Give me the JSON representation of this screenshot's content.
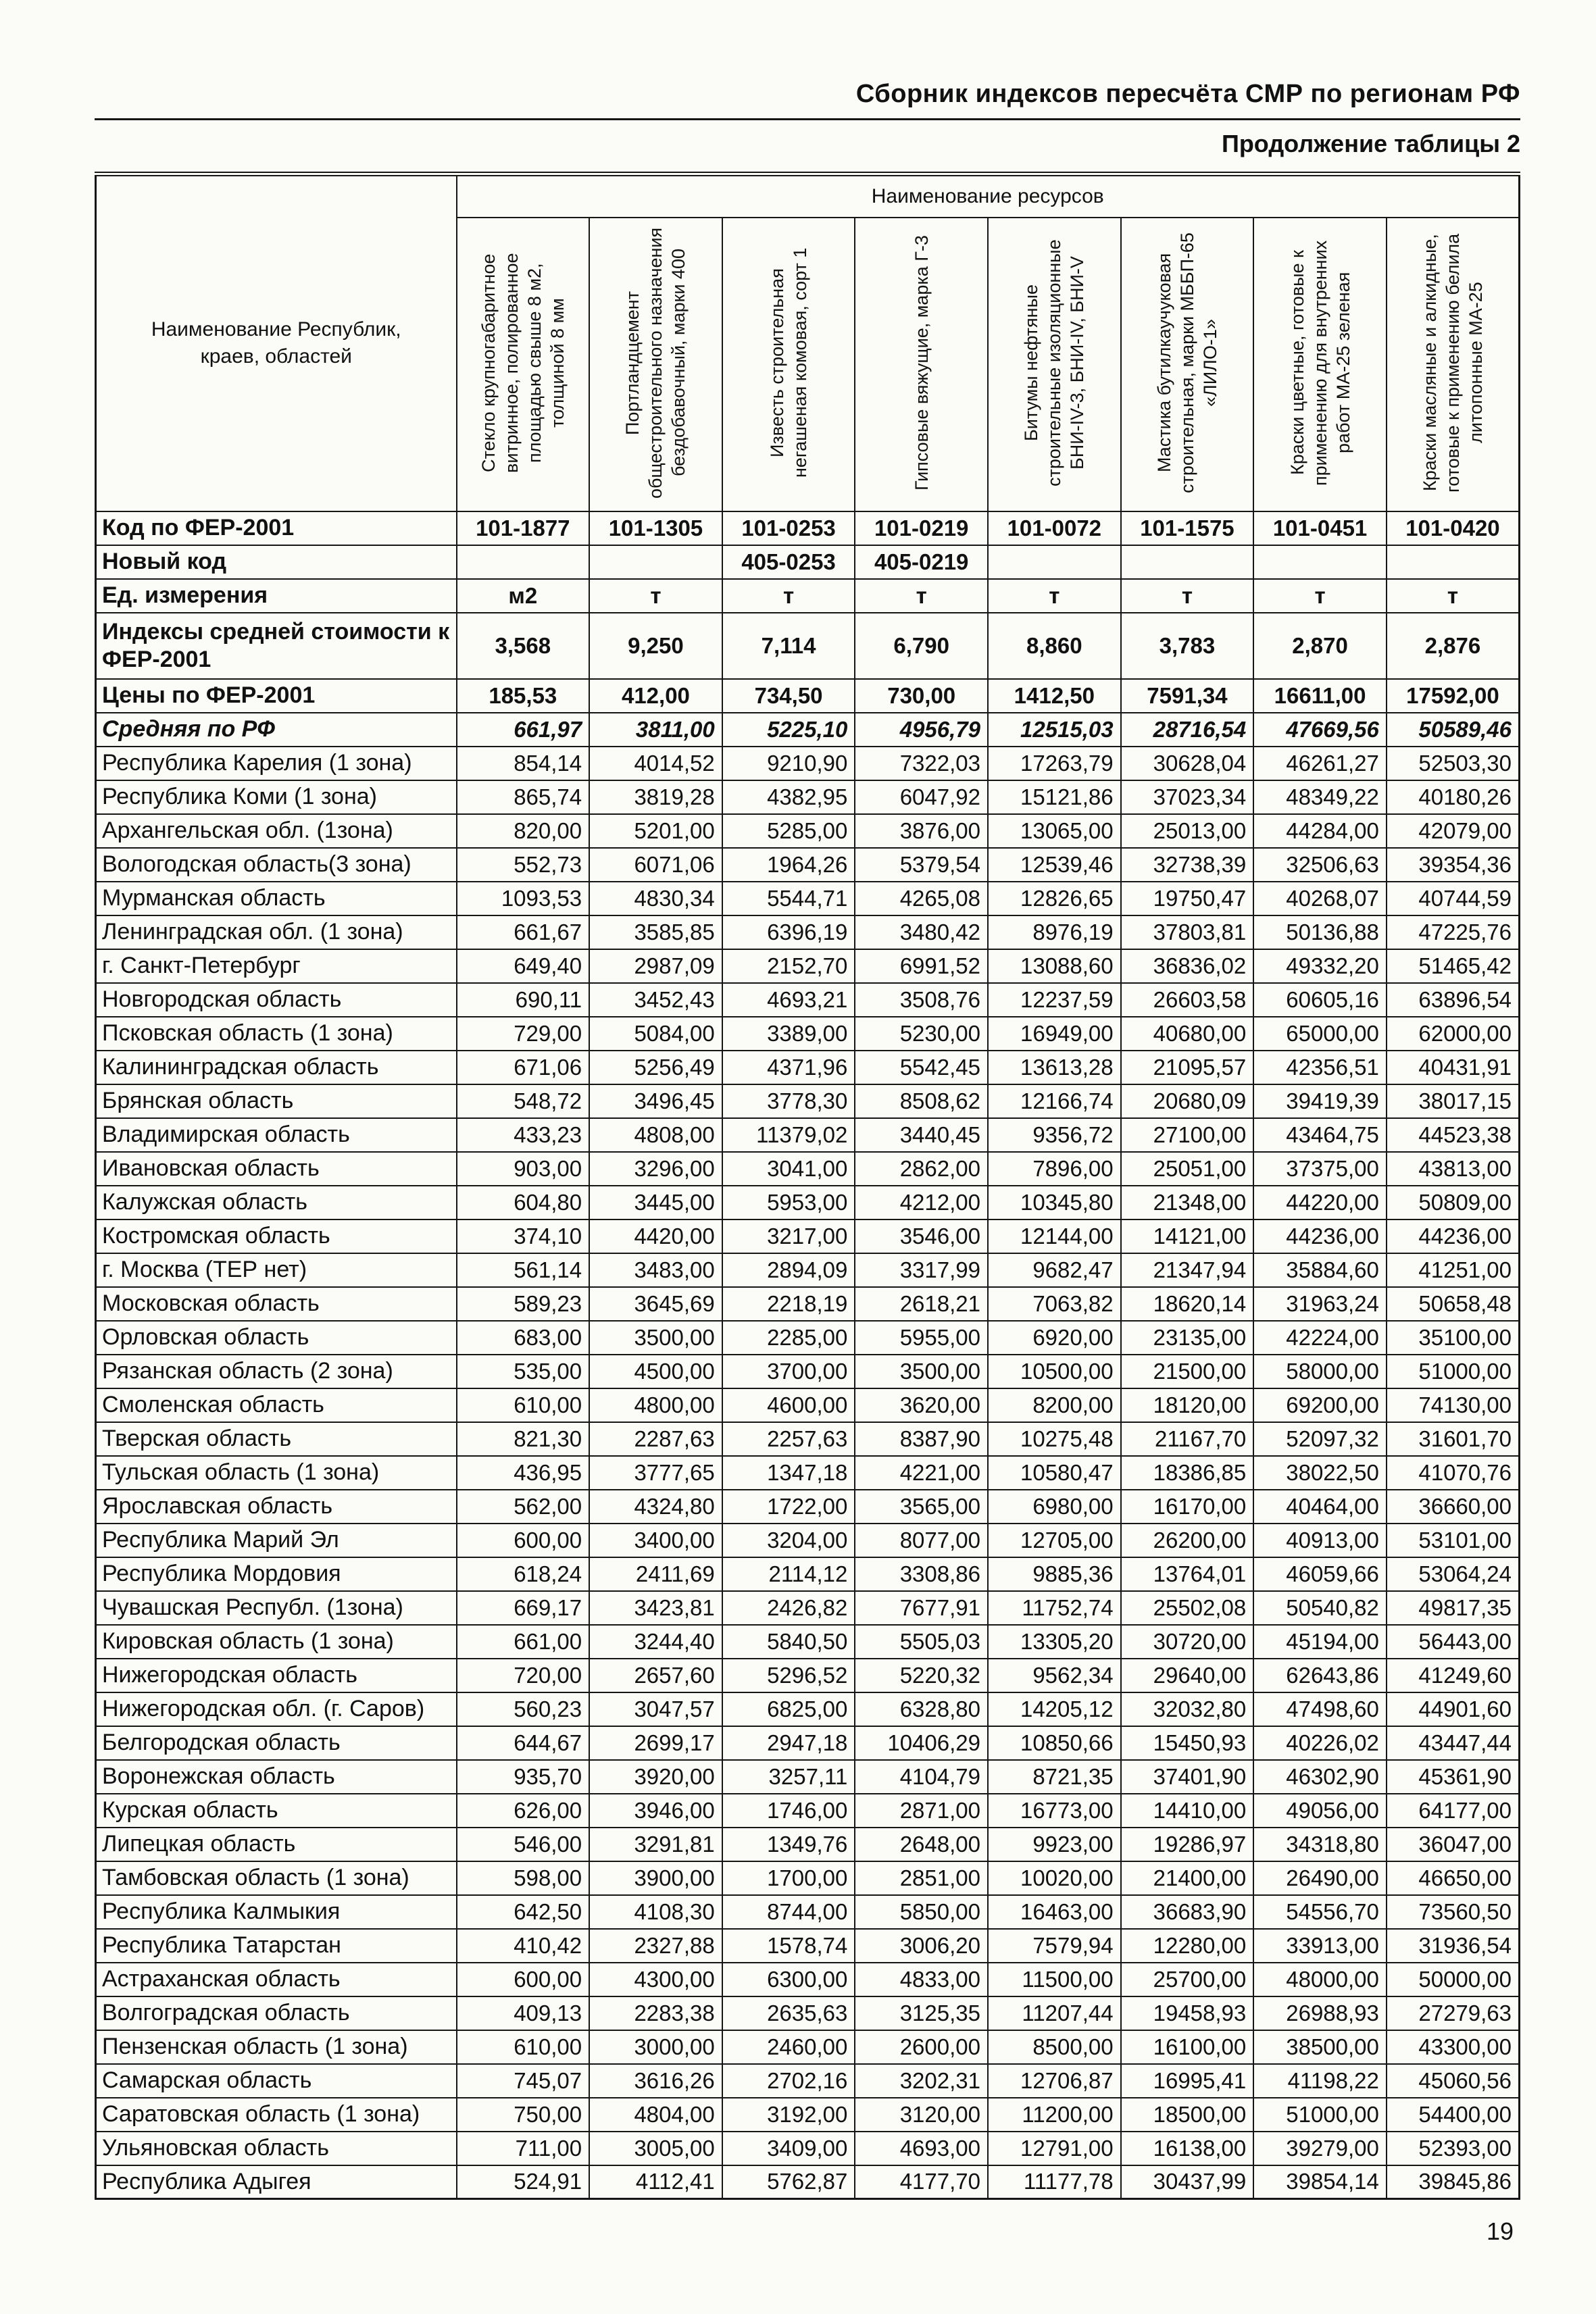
{
  "page": {
    "header_right": "Сборник индексов пересчёта СМР  по регионам РФ",
    "table_continuation": "Продолжение таблицы 2",
    "page_number": "19"
  },
  "table": {
    "first_col_header": "Наименование Республик, краев, областей",
    "resources_header": "Наименование ресурсов",
    "columns": [
      "Стекло крупногабаритное витринное, полированное площадью свыше 8 м2, толщиной 8 мм",
      "Портландцемент общестроительного назначения бездобавочный, марки 400",
      "Известь строительная негашеная комовая, сорт 1",
      "Гипсовые вяжущие, марка Г-3",
      "Битумы нефтяные строительные изоляционные БНИ-IV-3, БНИ-IV, БНИ-V",
      "Мастика бутилкаучуковая строительная, марки МББП-65 «ЛИЛО-1»",
      "Краски цветные, готовые к применению для внутренних работ МА-25 зеленая",
      "Краски масляные и алкидные, готовые к применению белила литопонные МА-25"
    ],
    "meta_rows": [
      {
        "key": "fer-code",
        "label": "Код по ФЕР-2001",
        "values": [
          "101-1877",
          "101-1305",
          "101-0253",
          "101-0219",
          "101-0072",
          "101-1575",
          "101-0451",
          "101-0420"
        ]
      },
      {
        "key": "new-code",
        "label": "Новый код",
        "values": [
          "",
          "",
          "405-0253",
          "405-0219",
          "",
          "",
          "",
          ""
        ]
      },
      {
        "key": "unit",
        "label": "Ед. измерения",
        "values": [
          "м2",
          "т",
          "т",
          "т",
          "т",
          "т",
          "т",
          "т"
        ]
      },
      {
        "key": "avg-cost-index",
        "label": "Индексы средней стоимости к ФЕР-2001",
        "values": [
          "3,568",
          "9,250",
          "7,114",
          "6,790",
          "8,860",
          "3,783",
          "2,870",
          "2,876"
        ]
      },
      {
        "key": "fer-prices",
        "label": "Цены по ФЕР-2001",
        "values": [
          "185,53",
          "412,00",
          "734,50",
          "730,00",
          "1412,50",
          "7591,34",
          "16611,00",
          "17592,00"
        ]
      },
      {
        "key": "rf-average",
        "label": "Средняя по РФ",
        "values": [
          "661,97",
          "3811,00",
          "5225,10",
          "4956,79",
          "12515,03",
          "28716,54",
          "47669,56",
          "50589,46"
        ]
      }
    ],
    "regions": [
      {
        "name": "Республика Карелия (1 зона)",
        "values": [
          "854,14",
          "4014,52",
          "9210,90",
          "7322,03",
          "17263,79",
          "30628,04",
          "46261,27",
          "52503,30"
        ]
      },
      {
        "name": "Республика Коми (1 зона)",
        "values": [
          "865,74",
          "3819,28",
          "4382,95",
          "6047,92",
          "15121,86",
          "37023,34",
          "48349,22",
          "40180,26"
        ]
      },
      {
        "name": "Архангельская обл. (1зона)",
        "values": [
          "820,00",
          "5201,00",
          "5285,00",
          "3876,00",
          "13065,00",
          "25013,00",
          "44284,00",
          "42079,00"
        ]
      },
      {
        "name": "Вологодская область(3 зона)",
        "values": [
          "552,73",
          "6071,06",
          "1964,26",
          "5379,54",
          "12539,46",
          "32738,39",
          "32506,63",
          "39354,36"
        ]
      },
      {
        "name": "Мурманская область",
        "values": [
          "1093,53",
          "4830,34",
          "5544,71",
          "4265,08",
          "12826,65",
          "19750,47",
          "40268,07",
          "40744,59"
        ]
      },
      {
        "name": "Ленинградская обл. (1 зона)",
        "values": [
          "661,67",
          "3585,85",
          "6396,19",
          "3480,42",
          "8976,19",
          "37803,81",
          "50136,88",
          "47225,76"
        ]
      },
      {
        "name": "г. Санкт-Петербург",
        "values": [
          "649,40",
          "2987,09",
          "2152,70",
          "6991,52",
          "13088,60",
          "36836,02",
          "49332,20",
          "51465,42"
        ]
      },
      {
        "name": "Новгородская область",
        "values": [
          "690,11",
          "3452,43",
          "4693,21",
          "3508,76",
          "12237,59",
          "26603,58",
          "60605,16",
          "63896,54"
        ]
      },
      {
        "name": "Псковская область (1 зона)",
        "values": [
          "729,00",
          "5084,00",
          "3389,00",
          "5230,00",
          "16949,00",
          "40680,00",
          "65000,00",
          "62000,00"
        ]
      },
      {
        "name": "Калининградская область",
        "values": [
          "671,06",
          "5256,49",
          "4371,96",
          "5542,45",
          "13613,28",
          "21095,57",
          "42356,51",
          "40431,91"
        ]
      },
      {
        "name": "Брянская область",
        "values": [
          "548,72",
          "3496,45",
          "3778,30",
          "8508,62",
          "12166,74",
          "20680,09",
          "39419,39",
          "38017,15"
        ]
      },
      {
        "name": "Владимирская область",
        "values": [
          "433,23",
          "4808,00",
          "11379,02",
          "3440,45",
          "9356,72",
          "27100,00",
          "43464,75",
          "44523,38"
        ]
      },
      {
        "name": "Ивановская область",
        "values": [
          "903,00",
          "3296,00",
          "3041,00",
          "2862,00",
          "7896,00",
          "25051,00",
          "37375,00",
          "43813,00"
        ]
      },
      {
        "name": "Калужская область",
        "values": [
          "604,80",
          "3445,00",
          "5953,00",
          "4212,00",
          "10345,80",
          "21348,00",
          "44220,00",
          "50809,00"
        ]
      },
      {
        "name": "Костромская область",
        "values": [
          "374,10",
          "4420,00",
          "3217,00",
          "3546,00",
          "12144,00",
          "14121,00",
          "44236,00",
          "44236,00"
        ]
      },
      {
        "name": "г. Москва (ТЕР нет)",
        "values": [
          "561,14",
          "3483,00",
          "2894,09",
          "3317,99",
          "9682,47",
          "21347,94",
          "35884,60",
          "41251,00"
        ]
      },
      {
        "name": "Московская  область",
        "values": [
          "589,23",
          "3645,69",
          "2218,19",
          "2618,21",
          "7063,82",
          "18620,14",
          "31963,24",
          "50658,48"
        ]
      },
      {
        "name": "Орловская область",
        "values": [
          "683,00",
          "3500,00",
          "2285,00",
          "5955,00",
          "6920,00",
          "23135,00",
          "42224,00",
          "35100,00"
        ]
      },
      {
        "name": "Рязанская область (2 зона)",
        "values": [
          "535,00",
          "4500,00",
          "3700,00",
          "3500,00",
          "10500,00",
          "21500,00",
          "58000,00",
          "51000,00"
        ]
      },
      {
        "name": "Смоленская область",
        "values": [
          "610,00",
          "4800,00",
          "4600,00",
          "3620,00",
          "8200,00",
          "18120,00",
          "69200,00",
          "74130,00"
        ]
      },
      {
        "name": "Тверская область",
        "values": [
          "821,30",
          "2287,63",
          "2257,63",
          "8387,90",
          "10275,48",
          "21167,70",
          "52097,32",
          "31601,70"
        ]
      },
      {
        "name": "Тульская область (1 зона)",
        "values": [
          "436,95",
          "3777,65",
          "1347,18",
          "4221,00",
          "10580,47",
          "18386,85",
          "38022,50",
          "41070,76"
        ]
      },
      {
        "name": "Ярославская область",
        "values": [
          "562,00",
          "4324,80",
          "1722,00",
          "3565,00",
          "6980,00",
          "16170,00",
          "40464,00",
          "36660,00"
        ]
      },
      {
        "name": "Республика Марий Эл",
        "values": [
          "600,00",
          "3400,00",
          "3204,00",
          "8077,00",
          "12705,00",
          "26200,00",
          "40913,00",
          "53101,00"
        ]
      },
      {
        "name": "Республика Мордовия",
        "values": [
          "618,24",
          "2411,69",
          "2114,12",
          "3308,86",
          "9885,36",
          "13764,01",
          "46059,66",
          "53064,24"
        ]
      },
      {
        "name": "Чувашская Республ. (1зона)",
        "values": [
          "669,17",
          "3423,81",
          "2426,82",
          "7677,91",
          "11752,74",
          "25502,08",
          "50540,82",
          "49817,35"
        ]
      },
      {
        "name": "Кировская область (1 зона)",
        "values": [
          "661,00",
          "3244,40",
          "5840,50",
          "5505,03",
          "13305,20",
          "30720,00",
          "45194,00",
          "56443,00"
        ]
      },
      {
        "name": "Нижегородская область",
        "values": [
          "720,00",
          "2657,60",
          "5296,52",
          "5220,32",
          "9562,34",
          "29640,00",
          "62643,86",
          "41249,60"
        ]
      },
      {
        "name": "Нижегородская обл. (г. Саров)",
        "values": [
          "560,23",
          "3047,57",
          "6825,00",
          "6328,80",
          "14205,12",
          "32032,80",
          "47498,60",
          "44901,60"
        ]
      },
      {
        "name": "Белгородская область",
        "values": [
          "644,67",
          "2699,17",
          "2947,18",
          "10406,29",
          "10850,66",
          "15450,93",
          "40226,02",
          "43447,44"
        ]
      },
      {
        "name": "Воронежская область",
        "values": [
          "935,70",
          "3920,00",
          "3257,11",
          "4104,79",
          "8721,35",
          "37401,90",
          "46302,90",
          "45361,90"
        ]
      },
      {
        "name": "Курская область",
        "values": [
          "626,00",
          "3946,00",
          "1746,00",
          "2871,00",
          "16773,00",
          "14410,00",
          "49056,00",
          "64177,00"
        ]
      },
      {
        "name": "Липецкая область",
        "values": [
          "546,00",
          "3291,81",
          "1349,76",
          "2648,00",
          "9923,00",
          "19286,97",
          "34318,80",
          "36047,00"
        ]
      },
      {
        "name": "Тамбовская область (1 зона)",
        "values": [
          "598,00",
          "3900,00",
          "1700,00",
          "2851,00",
          "10020,00",
          "21400,00",
          "26490,00",
          "46650,00"
        ]
      },
      {
        "name": "Республика Калмыкия",
        "values": [
          "642,50",
          "4108,30",
          "8744,00",
          "5850,00",
          "16463,00",
          "36683,90",
          "54556,70",
          "73560,50"
        ]
      },
      {
        "name": "Республика Татарстан",
        "values": [
          "410,42",
          "2327,88",
          "1578,74",
          "3006,20",
          "7579,94",
          "12280,00",
          "33913,00",
          "31936,54"
        ]
      },
      {
        "name": "Астраханская область",
        "values": [
          "600,00",
          "4300,00",
          "6300,00",
          "4833,00",
          "11500,00",
          "25700,00",
          "48000,00",
          "50000,00"
        ]
      },
      {
        "name": "Волгоградская область",
        "values": [
          "409,13",
          "2283,38",
          "2635,63",
          "3125,35",
          "11207,44",
          "19458,93",
          "26988,93",
          "27279,63"
        ]
      },
      {
        "name": "Пензенская область (1 зона)",
        "values": [
          "610,00",
          "3000,00",
          "2460,00",
          "2600,00",
          "8500,00",
          "16100,00",
          "38500,00",
          "43300,00"
        ]
      },
      {
        "name": "Самарская область",
        "values": [
          "745,07",
          "3616,26",
          "2702,16",
          "3202,31",
          "12706,87",
          "16995,41",
          "41198,22",
          "45060,56"
        ]
      },
      {
        "name": "Саратовская область (1 зона)",
        "values": [
          "750,00",
          "4804,00",
          "3192,00",
          "3120,00",
          "11200,00",
          "18500,00",
          "51000,00",
          "54400,00"
        ]
      },
      {
        "name": "Ульяновская область",
        "values": [
          "711,00",
          "3005,00",
          "3409,00",
          "4693,00",
          "12791,00",
          "16138,00",
          "39279,00",
          "52393,00"
        ]
      },
      {
        "name": "Республика Адыгея",
        "values": [
          "524,91",
          "4112,41",
          "5762,87",
          "4177,70",
          "11177,78",
          "30437,99",
          "39854,14",
          "39845,86"
        ]
      }
    ]
  }
}
